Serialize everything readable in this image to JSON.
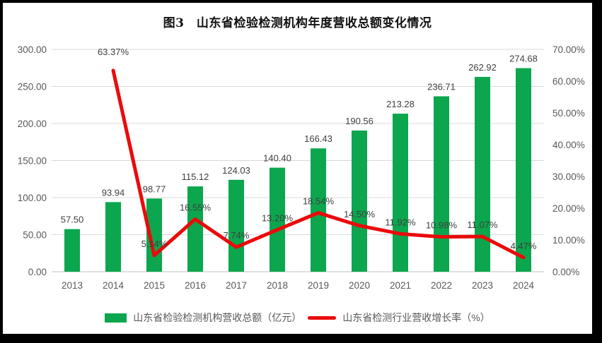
{
  "title": "图3　山东省检验检测机构年度营收总额变化情况",
  "chart_data": {
    "type": "bar",
    "subtype": "combo-bar-line",
    "title": "图3　山东省检验检测机构年度营收总额变化情况",
    "categories": [
      "2013",
      "2014",
      "2015",
      "2016",
      "2017",
      "2018",
      "2019",
      "2020",
      "2021",
      "2022",
      "2023",
      "2024"
    ],
    "series": [
      {
        "name": "山东省检验检测机构营收总额（亿元）",
        "type": "bar",
        "axis": "left",
        "color": "#0CA64E",
        "values": [
          57.5,
          93.94,
          98.77,
          115.12,
          124.03,
          140.4,
          166.43,
          190.56,
          213.28,
          236.71,
          262.92,
          274.68
        ],
        "labels": [
          "57.50",
          "93.94",
          "98.77",
          "115.12",
          "124.03",
          "140.40",
          "166.43",
          "190.56",
          "213.28",
          "236.71",
          "262.92",
          "274.68"
        ]
      },
      {
        "name": "山东省检测行业营收增长率（%）",
        "type": "line",
        "axis": "right",
        "color": "#EB0A0A",
        "values": [
          null,
          63.37,
          5.14,
          16.55,
          7.74,
          13.2,
          18.54,
          14.5,
          11.92,
          10.98,
          11.07,
          4.47
        ],
        "labels": [
          null,
          "63.37%",
          "5.14%",
          "16.55%",
          "7.74%",
          "13.20%",
          "18.54%",
          "14.50%",
          "11.92%",
          "10.98%",
          "11.07%",
          "4.47%"
        ]
      }
    ],
    "left_axis": {
      "min": 0,
      "max": 300,
      "ticks": [
        "0.00",
        "50.00",
        "100.00",
        "150.00",
        "200.00",
        "250.00",
        "300.00"
      ]
    },
    "right_axis": {
      "min": 0,
      "max": 70,
      "ticks": [
        "0.00%",
        "10.00%",
        "20.00%",
        "30.00%",
        "40.00%",
        "50.00%",
        "60.00%",
        "70.00%"
      ]
    },
    "grid": true,
    "legend_position": "bottom"
  },
  "theme": {
    "grid_color": "#D9D9D9",
    "axis_line_color": "#BFBFBF",
    "tick_text_color": "#595959",
    "data_label_color": "#404040",
    "background": "#FFFFFF",
    "frame": "#000000"
  }
}
